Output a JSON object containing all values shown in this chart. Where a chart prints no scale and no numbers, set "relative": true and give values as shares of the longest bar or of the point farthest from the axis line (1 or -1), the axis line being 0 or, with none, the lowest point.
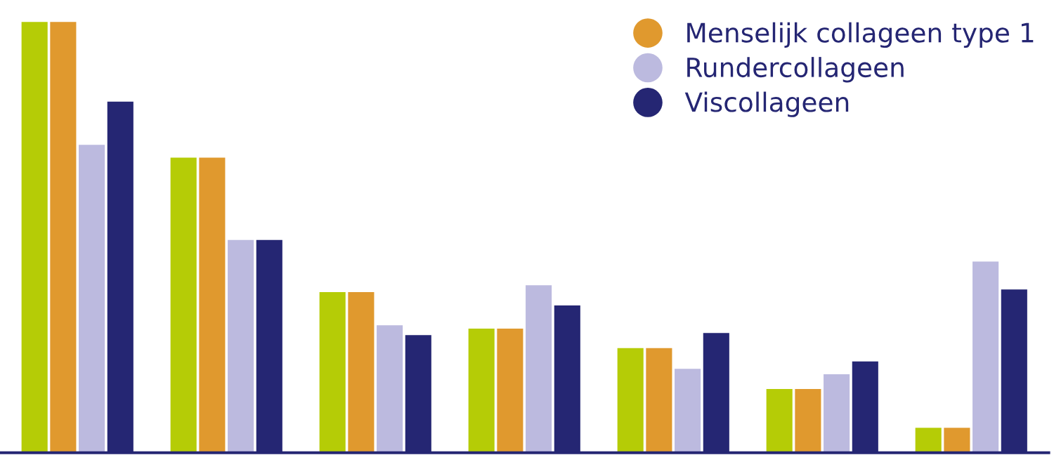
{
  "chart_data": {
    "type": "bar",
    "relative": true,
    "categories": [
      null,
      null,
      null,
      null,
      null,
      null,
      null
    ],
    "legend": "top right",
    "grid": false,
    "series": [
      {
        "color": "#b5cc06",
        "values": [
          1.0,
          0.685,
          0.373,
          0.288,
          0.243,
          0.148,
          0.058
        ]
      },
      {
        "name": "Menselijk collageen type 1",
        "color": "#e0992e",
        "values": [
          1.0,
          0.685,
          0.373,
          0.288,
          0.243,
          0.148,
          0.058
        ]
      },
      {
        "name": "Rundercollageen",
        "color": "#bcbadf",
        "values": [
          0.715,
          0.494,
          0.296,
          0.389,
          0.195,
          0.182,
          0.444
        ]
      },
      {
        "name": "Viscollageen",
        "color": "#252673",
        "values": [
          0.815,
          0.494,
          0.273,
          0.342,
          0.278,
          0.212,
          0.379
        ]
      }
    ]
  }
}
